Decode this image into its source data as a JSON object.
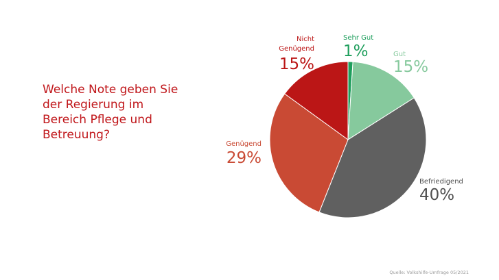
{
  "question": "Welche Note geben Sie der Regierung im Bereich Pflege und Betreuung?",
  "source": "Quelle: Volkshilfe-Umfrage 05/2021",
  "chart_data": {
    "type": "pie",
    "slices": [
      {
        "label": "Sehr Gut",
        "value": 1,
        "display": "1%",
        "color": "#1e9e5c"
      },
      {
        "label": "Gut",
        "value": 15,
        "display": "15%",
        "color": "#86c99d"
      },
      {
        "label": "Befriedigend",
        "value": 40,
        "display": "40%",
        "color": "#606060"
      },
      {
        "label": "Genügend",
        "value": 29,
        "display": "29%",
        "color": "#c94a34"
      },
      {
        "label": "Nicht Genügend",
        "value": 15,
        "display": "15%",
        "color": "#bb1616"
      }
    ],
    "label_colors": {
      "Sehr Gut": "#1e9e5c",
      "Gut": "#86c99d",
      "Befriedigend": "#4f4f4f",
      "Genügend": "#c94a34",
      "Nicht Genügend": "#bb1616"
    }
  }
}
